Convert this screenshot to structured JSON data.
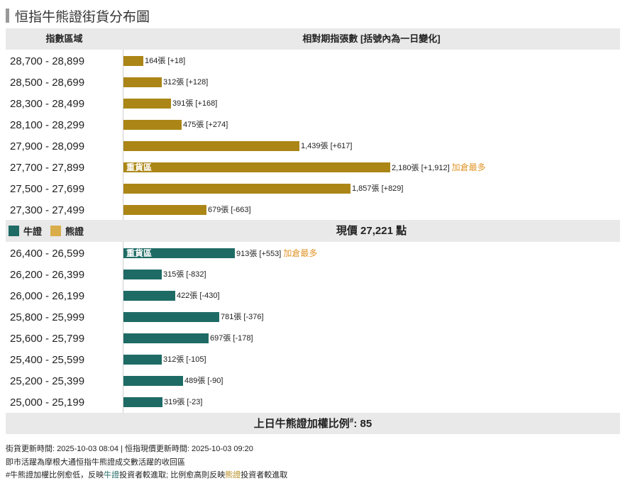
{
  "title": "恒指牛熊證街貨分布圖",
  "header": {
    "range_col": "指數區域",
    "bars_col": "相對期指張數 [括號內為一日變化]"
  },
  "colors": {
    "bear": "#ab8616",
    "bull": "#1e6b65",
    "highlight": "#e0962a"
  },
  "heavy_label": "重貨區",
  "most_label": "加倉最多",
  "legend": {
    "bull": "牛證",
    "bear": "熊證"
  },
  "price_text": "現價 27,221 點",
  "ratio": {
    "label": "上日牛熊證加權比例",
    "mark": "#",
    "value": ": 85"
  },
  "footer": {
    "line1": "街貨更新時間: 2025-10-03 08:04  |  恒指現價更新時間: 2025-10-03 09:20",
    "line2": "即市活躍為摩根大通恒指牛熊證成交數活躍的收回區",
    "line3a": "#牛熊證加權比例愈低，反映",
    "line3b": "牛證",
    "line3c": "投資者較進取; 比例愈高則反映",
    "line3d": "熊證",
    "line3e": "投資者較進取"
  },
  "chart_data": {
    "type": "bar",
    "orientation": "horizontal",
    "max_value": 2180,
    "bear_rows": [
      {
        "range": "28,700 - 28,899",
        "value": 164,
        "label": "164張 [+18]"
      },
      {
        "range": "28,500 - 28,699",
        "value": 312,
        "label": "312張 [+128]"
      },
      {
        "range": "28,300 - 28,499",
        "value": 391,
        "label": "391張 [+168]"
      },
      {
        "range": "28,100 - 28,299",
        "value": 475,
        "label": "475張 [+274]"
      },
      {
        "range": "27,900 - 28,099",
        "value": 1439,
        "label": "1,439張 [+617]"
      },
      {
        "range": "27,700 - 27,899",
        "value": 2180,
        "label": "2,180張 [+1,912]",
        "heavy": true,
        "most": true
      },
      {
        "range": "27,500 - 27,699",
        "value": 1857,
        "label": "1,857張 [+829]"
      },
      {
        "range": "27,300 - 27,499",
        "value": 679,
        "label": "679張 [-663]"
      }
    ],
    "bull_rows": [
      {
        "range": "26,400 - 26,599",
        "value": 913,
        "label": "913張 [+553]",
        "heavy": true,
        "most": true
      },
      {
        "range": "26,200 - 26,399",
        "value": 315,
        "label": "315張 [-832]"
      },
      {
        "range": "26,000 - 26,199",
        "value": 422,
        "label": "422張 [-430]"
      },
      {
        "range": "25,800 - 25,999",
        "value": 781,
        "label": "781張 [-376]"
      },
      {
        "range": "25,600 - 25,799",
        "value": 697,
        "label": "697張 [-178]"
      },
      {
        "range": "25,400 - 25,599",
        "value": 312,
        "label": "312張 [-105]"
      },
      {
        "range": "25,200 - 25,399",
        "value": 489,
        "label": "489張 [-90]"
      },
      {
        "range": "25,000 - 25,199",
        "value": 319,
        "label": "319張 [-23]"
      }
    ]
  }
}
